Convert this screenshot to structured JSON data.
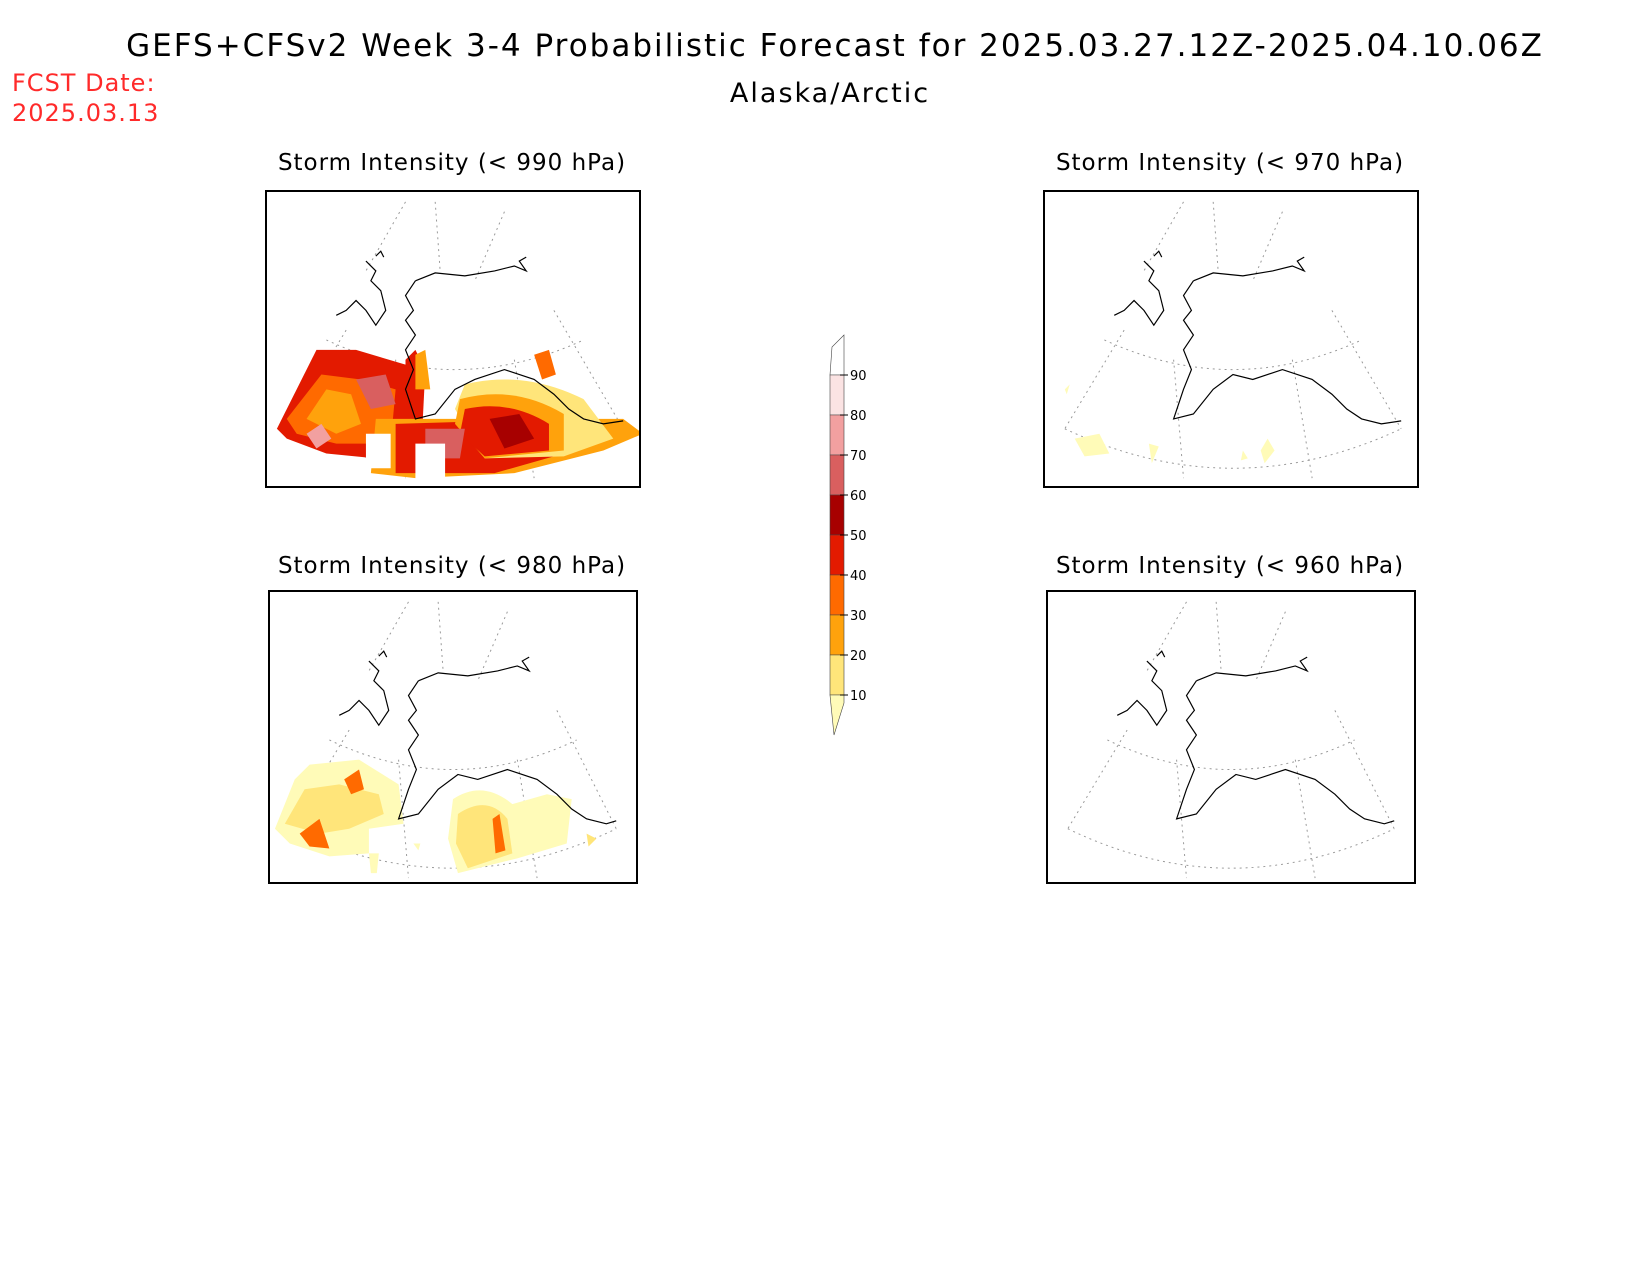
{
  "header": {
    "title": "GEFS+CFSv2 Week 3-4 Probabilistic Forecast for 2025.03.27.12Z-2025.04.10.06Z",
    "region": "Alaska/Arctic",
    "fcst_date_label": "FCST Date:",
    "fcst_date_value": "2025.03.13"
  },
  "panels": [
    {
      "id": "p990",
      "title": "Storm Intensity (< 990 hPa)"
    },
    {
      "id": "p970",
      "title": "Storm Intensity (< 970 hPa)"
    },
    {
      "id": "p980",
      "title": "Storm Intensity (< 980 hPa)"
    },
    {
      "id": "p960",
      "title": "Storm Intensity (< 960 hPa)"
    }
  ],
  "colorbar": {
    "levels": [
      "10",
      "20",
      "30",
      "40",
      "50",
      "60",
      "70",
      "80",
      "90"
    ],
    "colors": [
      "#fffbb8",
      "#ffe57a",
      "#ffa20c",
      "#ff6a00",
      "#e31a00",
      "#a70000",
      "#d95f5f",
      "#f2a0a0",
      "#fbe3e3",
      "#ffffff"
    ]
  }
}
